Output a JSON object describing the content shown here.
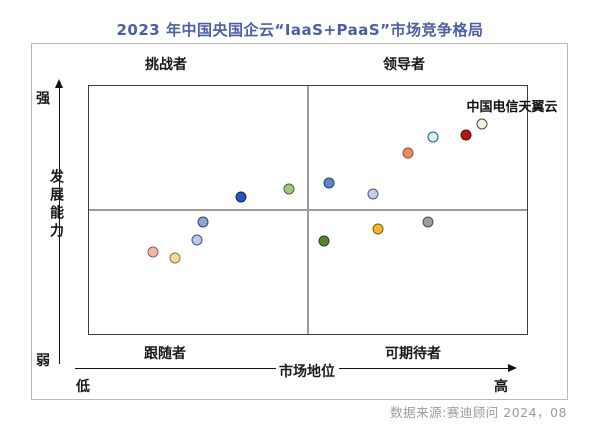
{
  "source": "数据来源:赛迪顾问 2024，08",
  "colors": {
    "title_text": "#4a5fa8",
    "quadrant_divider": "#9c9c9c",
    "plot_border": "#3d3d3d",
    "outer_frame_border": "#b9b9b9",
    "source_text": "#9b9b9b"
  },
  "chart_data": {
    "type": "scatter",
    "title": "2023 年中国央国企云“IaaS+PaaS”市场竞争格局",
    "xlabel": "市场地位",
    "ylabel": "发展能力",
    "x_low_label": "低",
    "x_high_label": "高",
    "y_low_label": "弱",
    "y_high_label": "强",
    "xlim": [
      0,
      100
    ],
    "ylim": [
      0,
      100
    ],
    "grid": false,
    "quadrants": {
      "top_left": "挑战者",
      "top_right": "领导者",
      "bottom_left": "跟随者",
      "bottom_right": "可期待者"
    },
    "points": [
      {
        "x": 14.6,
        "y": 33.1,
        "fill": "#e9b9ab",
        "border": "#9e5a48"
      },
      {
        "x": 19.6,
        "y": 30.6,
        "fill": "#f6d9a2",
        "border": "#96763a"
      },
      {
        "x": 24.7,
        "y": 37.9,
        "fill": "#bccbe9",
        "border": "#3f5276"
      },
      {
        "x": 26.0,
        "y": 45.2,
        "fill": "#8da6d1",
        "border": "#2f4166"
      },
      {
        "x": 34.7,
        "y": 55.2,
        "fill": "#2b51c3",
        "border": "#14265e"
      },
      {
        "x": 45.7,
        "y": 58.5,
        "fill": "#a3c687",
        "border": "#49681f"
      },
      {
        "x": 54.8,
        "y": 60.9,
        "fill": "#5f87c5",
        "border": "#24416c"
      },
      {
        "x": 64.8,
        "y": 56.5,
        "fill": "#c6ccee",
        "border": "#50557e"
      },
      {
        "x": 53.7,
        "y": 37.5,
        "fill": "#5c8038",
        "border": "#2d4416"
      },
      {
        "x": 66.0,
        "y": 42.3,
        "fill": "#f2ba2a",
        "border": "#7a5c0e"
      },
      {
        "x": 77.4,
        "y": 45.2,
        "fill": "#9d9d9d",
        "border": "#4f4f4f"
      },
      {
        "x": 72.8,
        "y": 73.0,
        "fill": "#e78e68",
        "border": "#97492a"
      },
      {
        "x": 78.5,
        "y": 79.4,
        "fill": "#d9eef0",
        "border": "#1f5f66"
      },
      {
        "x": 86.1,
        "y": 80.2,
        "fill": "#ae1a17",
        "border": "#550a08"
      },
      {
        "x": 89.7,
        "y": 84.7,
        "fill": "#ebf3e2",
        "border": "#3f5230",
        "label": "中国电信天翼云"
      }
    ]
  }
}
